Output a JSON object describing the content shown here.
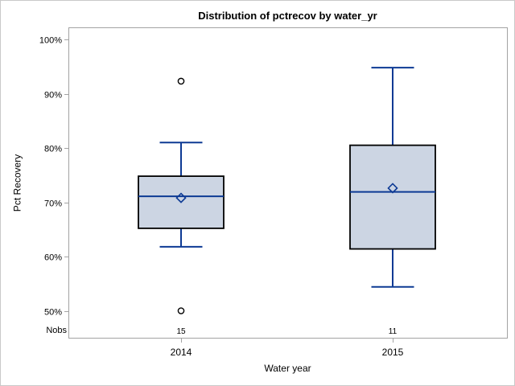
{
  "chart_data": {
    "type": "boxplot",
    "title": "Distribution of pctrecov by water_yr",
    "xlabel": "Water year",
    "ylabel": "Pct Recovery",
    "nobs_label": "Nobs",
    "categories": [
      "2014",
      "2015"
    ],
    "y_ticks": [
      100,
      90,
      80,
      70,
      60,
      50
    ],
    "y_tick_suffix": "%",
    "ylim": [
      45,
      102
    ],
    "grid": false,
    "legend": "none",
    "series": [
      {
        "category": "2014",
        "nobs": "15",
        "whisker_low": 61.8,
        "q1": 65.2,
        "median": 71.1,
        "q3": 74.8,
        "whisker_high": 81.0,
        "mean": 70.8,
        "outliers": [
          92.3,
          50.0
        ]
      },
      {
        "category": "2015",
        "nobs": "11",
        "whisker_low": 54.4,
        "q1": 61.4,
        "median": 71.9,
        "q3": 80.5,
        "whisker_high": 94.8,
        "mean": 72.6,
        "outliers": []
      }
    ],
    "colors": {
      "line": "#0d3a94",
      "box_fill": "#ccd5e3",
      "box_border": "#000000",
      "wall_border": "#a3a3a3",
      "outer_border": "#c9c9c9",
      "text": "#000000",
      "background": "#ffffff"
    }
  }
}
